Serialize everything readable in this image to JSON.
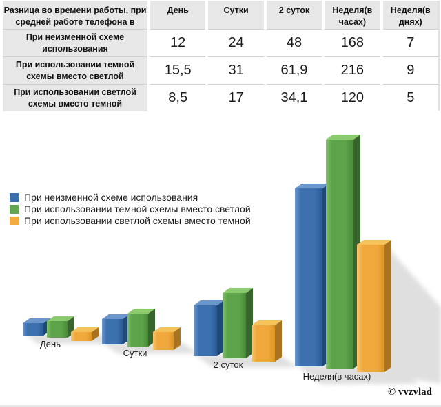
{
  "table": {
    "header": [
      "Разница во времени работы, при средней работе телефона в",
      "День",
      "Сутки",
      "2 суток",
      "Неделя(в часах)",
      "Неделя(в днях)"
    ],
    "rows": [
      {
        "label": "При неизменной схеме использования",
        "values": [
          "12",
          "24",
          "48",
          "168",
          "7"
        ]
      },
      {
        "label": "При использовании темной схемы вместо светлой",
        "values": [
          "15,5",
          "31",
          "61,9",
          "216",
          "9"
        ]
      },
      {
        "label": "При использовании светлой схемы вместо темной",
        "values": [
          "8,5",
          "17",
          "34,1",
          "120",
          "5"
        ]
      }
    ]
  },
  "legend": {
    "items": [
      {
        "label": "При неизменной схеме использования",
        "color": "#3A70AC"
      },
      {
        "label": "При использовании темной схемы вместо светлой",
        "color": "#64A751"
      },
      {
        "label": "При использовании светлой схемы вместо темной",
        "color": "#F2AC41"
      }
    ]
  },
  "chart_data": {
    "type": "bar",
    "style": "3d-perspective",
    "categories": [
      "День",
      "Сутки",
      "2 суток",
      "Неделя(в часах)"
    ],
    "series": [
      {
        "name": "При неизменной схеме использования",
        "values": [
          12,
          24,
          48,
          168
        ]
      },
      {
        "name": "При использовании темной схемы вместо светлой",
        "values": [
          15.5,
          31,
          61.9,
          216
        ]
      },
      {
        "name": "При использовании светлой схемы вместо темной",
        "values": [
          8.5,
          17,
          34.1,
          120
        ]
      }
    ],
    "ylim": [
      0,
      230
    ],
    "axes_visible": false,
    "grid": false,
    "legend_position": "middle-left"
  },
  "series_colors": [
    {
      "front": "#3C70AE",
      "front_light": "#6B97CD",
      "front_dark": "#2A5B96",
      "top": "#6C97CC",
      "side": "#1E4977"
    },
    {
      "front": "#5CA349",
      "front_light": "#82C06C",
      "front_dark": "#4A8A3A",
      "top": "#8CCA6E",
      "side": "#38652E"
    },
    {
      "front": "#F0A83D",
      "front_light": "#F6C56E",
      "front_dark": "#DE9524",
      "top": "#F6C25B",
      "side": "#A97320"
    }
  ],
  "watermark": "© vvzvlad"
}
